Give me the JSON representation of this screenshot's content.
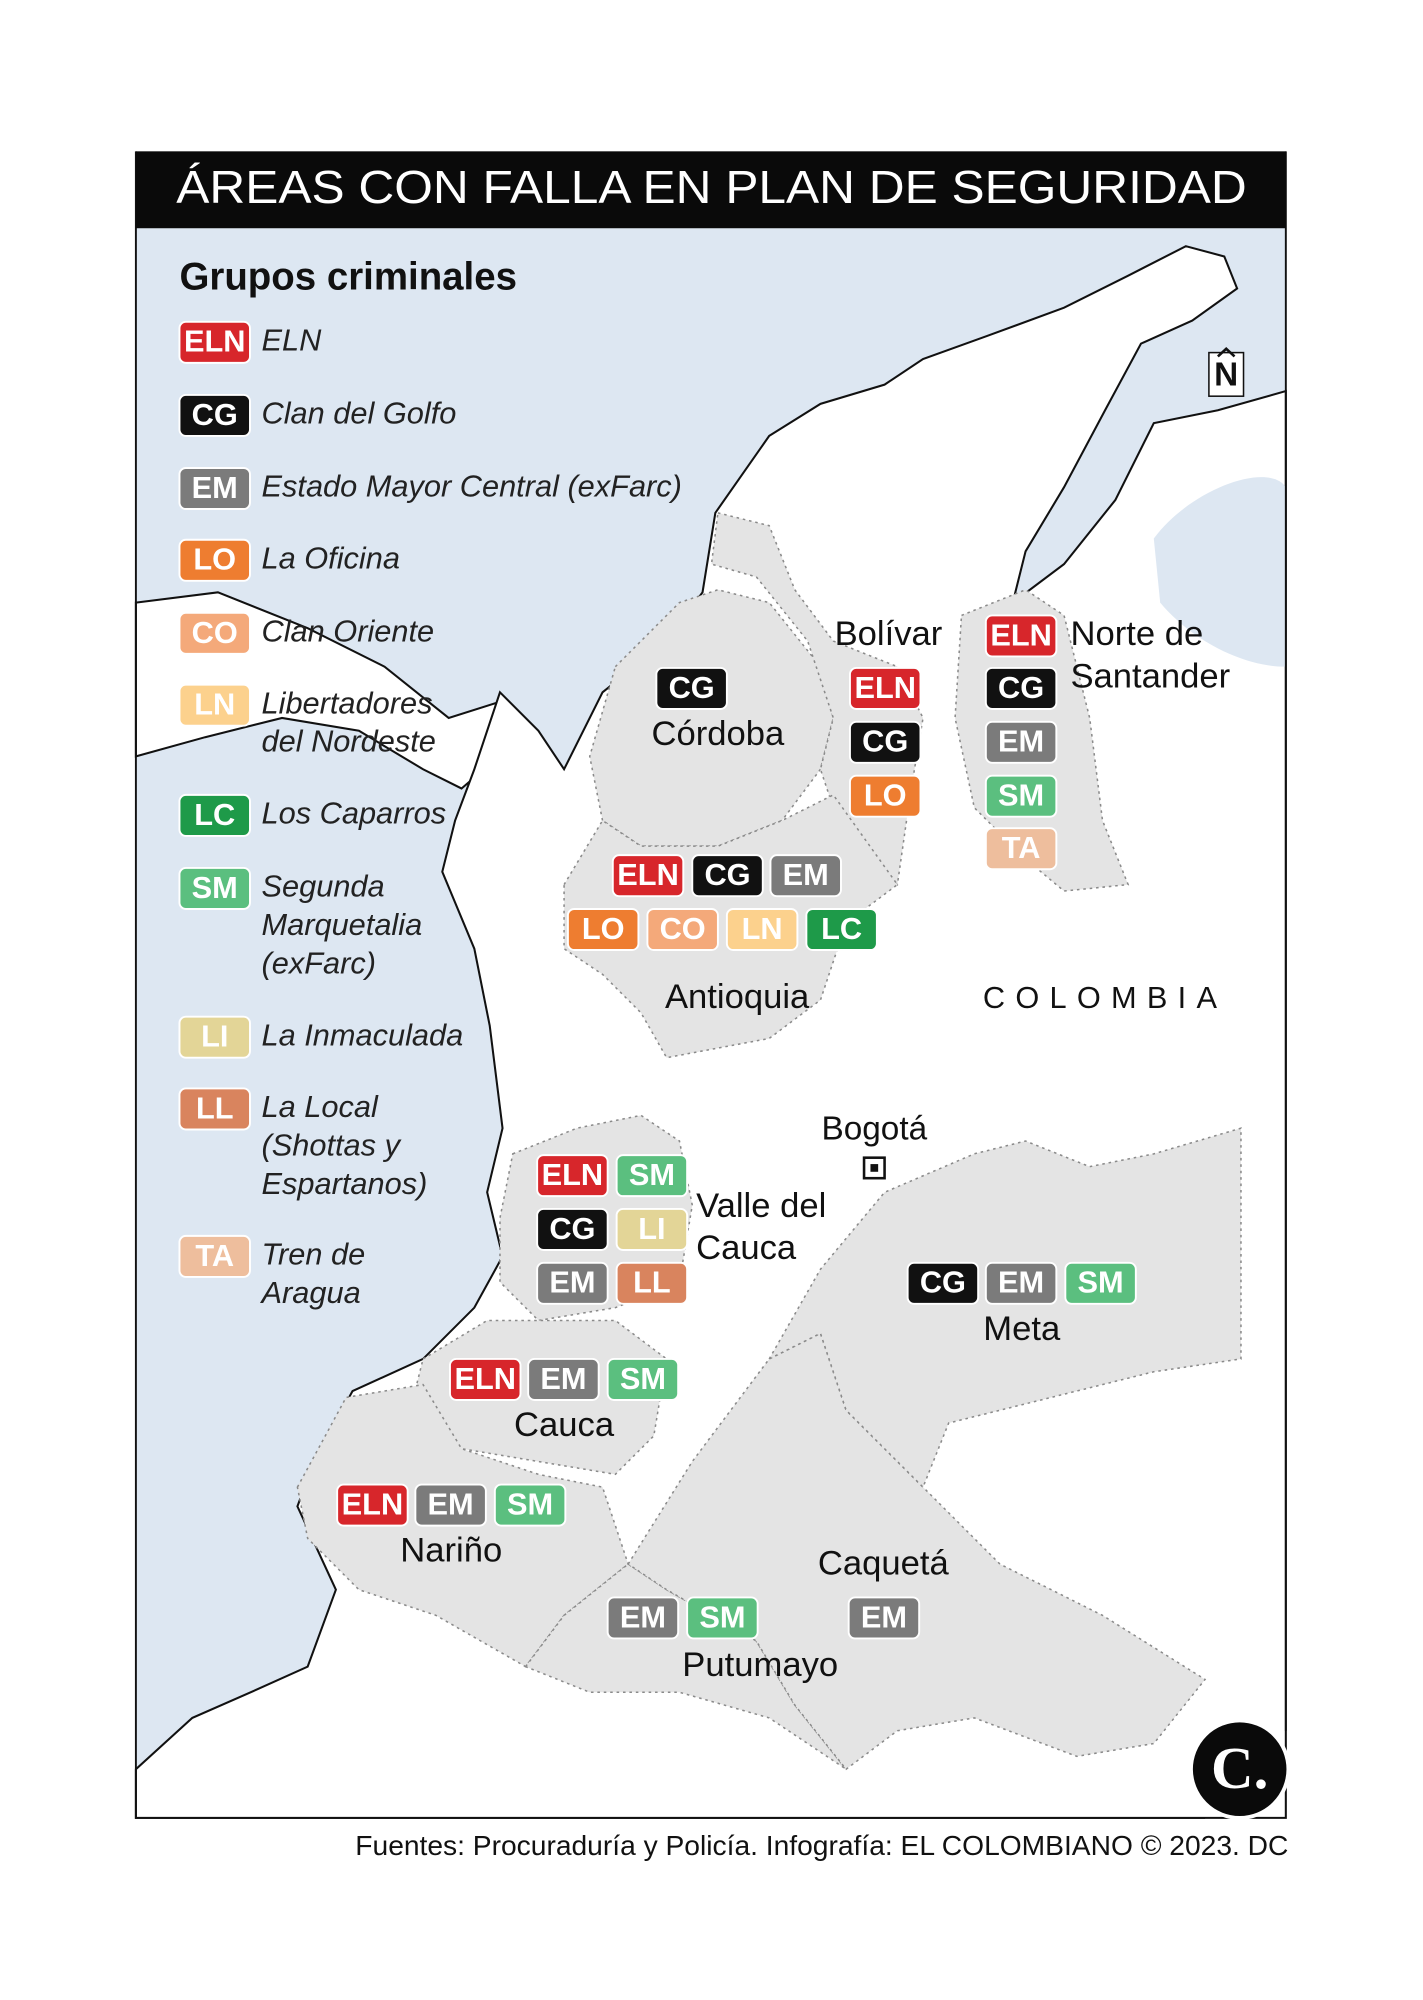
{
  "title": "ÁREAS CON FALLA EN PLAN DE SEGURIDAD",
  "legend": {
    "title": "Grupos criminales",
    "items": [
      {
        "code": "ELN",
        "color": "#d7262b",
        "name": [
          "ELN"
        ]
      },
      {
        "code": "CG",
        "color": "#111111",
        "name": [
          "Clan del Golfo"
        ]
      },
      {
        "code": "EM",
        "color": "#7b7b7b",
        "name": [
          "Estado Mayor Central (exFarc)"
        ]
      },
      {
        "code": "LO",
        "color": "#ee7d30",
        "name": [
          "La Oficina"
        ]
      },
      {
        "code": "CO",
        "color": "#f4a97a",
        "name": [
          "Clan Oriente"
        ]
      },
      {
        "code": "LN",
        "color": "#fcd18d",
        "name": [
          "Libertadores",
          "del Nordeste"
        ]
      },
      {
        "code": "LC",
        "color": "#1e9a49",
        "name": [
          "Los Caparros"
        ]
      },
      {
        "code": "SM",
        "color": "#5bbf7f",
        "name": [
          "Segunda",
          "Marquetalia",
          "(exFarc)"
        ]
      },
      {
        "code": "LI",
        "color": "#e3d597",
        "name": [
          "La Inmaculada"
        ]
      },
      {
        "code": "LL",
        "color": "#d9845e",
        "name": [
          "La Local",
          "(Shottas y",
          "Espartanos)"
        ]
      },
      {
        "code": "TA",
        "color": "#eebe9d",
        "name": [
          "Tren de",
          "Aragua"
        ]
      }
    ]
  },
  "regions": [
    {
      "name": [
        "Bolívar"
      ],
      "groups": [
        "ELN",
        "CG",
        "LO"
      ]
    },
    {
      "name": [
        "Norte de",
        "Santander"
      ],
      "groups": [
        "ELN",
        "CG",
        "EM",
        "SM",
        "TA"
      ]
    },
    {
      "name": [
        "Córdoba"
      ],
      "groups": [
        "CG"
      ]
    },
    {
      "name": [
        "Antioquia"
      ],
      "groups": [
        "ELN",
        "CG",
        "EM",
        "LO",
        "CO",
        "LN",
        "LC"
      ]
    },
    {
      "name": [
        "Valle del",
        "Cauca"
      ],
      "groups": [
        "ELN",
        "SM",
        "CG",
        "LI",
        "EM",
        "LL"
      ]
    },
    {
      "name": [
        "Meta"
      ],
      "groups": [
        "CG",
        "EM",
        "SM"
      ]
    },
    {
      "name": [
        "Cauca"
      ],
      "groups": [
        "ELN",
        "EM",
        "SM"
      ]
    },
    {
      "name": [
        "Nariño"
      ],
      "groups": [
        "ELN",
        "EM",
        "SM"
      ]
    },
    {
      "name": [
        "Putumayo"
      ],
      "groups": [
        "EM",
        "SM"
      ]
    },
    {
      "name": [
        "Caquetá"
      ],
      "groups": [
        "EM"
      ]
    }
  ],
  "country": "COLOMBIA",
  "capital": "Bogotá",
  "north": "N",
  "logo": "C.",
  "source": "Fuentes: Procuraduría y Policía. Infografía: EL COLOMBIANO © 2023. DC"
}
